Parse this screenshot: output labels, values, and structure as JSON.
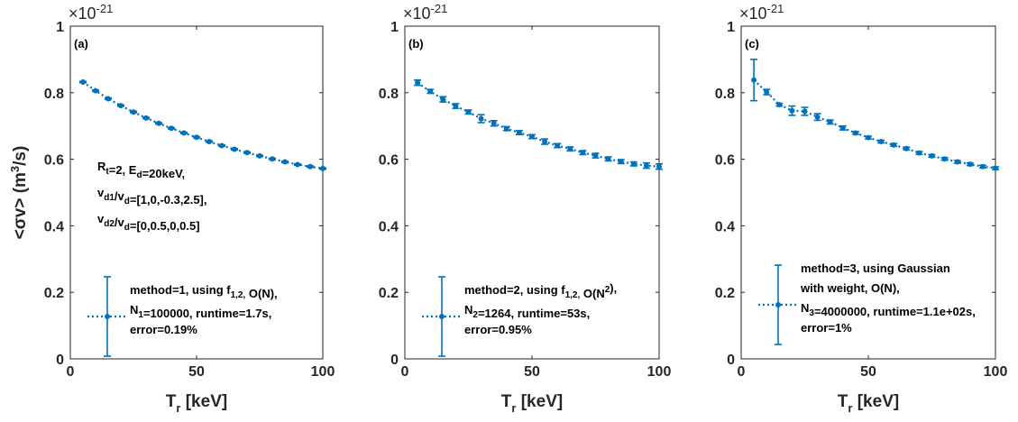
{
  "chart_data": [
    {
      "type": "scatter",
      "panel_label": "(a)",
      "xlim": [
        0,
        100
      ],
      "ylim": [
        0,
        1
      ],
      "xticks": [
        "0",
        "50",
        "100"
      ],
      "yticks": [
        "0",
        "0.2",
        "0.4",
        "0.6",
        "0.8",
        "1"
      ],
      "exponent": "-21",
      "xlabel": {
        "main": "T",
        "sub": "r",
        "unit": " [keV]"
      },
      "ylabel": "<σv> (m³/s)",
      "annotation": [
        "R_t=2, E_d=20keV,",
        "v_d1/v_d=[1,0,-0.3,2.5],",
        "v_d2/v_d=[0,0.5,0,0.5]"
      ],
      "legend": [
        "method=1, using f_1,2, O(N),",
        "N_1=100000, runtime=1.7s,",
        "error=0.19%"
      ],
      "series": [
        {
          "x": [
            5,
            10,
            15,
            20,
            25,
            30,
            35,
            40,
            45,
            50,
            55,
            60,
            65,
            70,
            75,
            80,
            85,
            90,
            95,
            100
          ],
          "y": [
            0.832,
            0.806,
            0.782,
            0.761,
            0.742,
            0.724,
            0.708,
            0.693,
            0.679,
            0.666,
            0.653,
            0.641,
            0.63,
            0.62,
            0.61,
            0.601,
            0.592,
            0.584,
            0.578,
            0.572
          ],
          "err": [
            0.002,
            0.002,
            0.002,
            0.002,
            0.002,
            0.002,
            0.002,
            0.002,
            0.002,
            0.002,
            0.002,
            0.002,
            0.002,
            0.002,
            0.002,
            0.002,
            0.002,
            0.002,
            0.002,
            0.002
          ]
        }
      ],
      "color": "#0072BD"
    },
    {
      "type": "scatter",
      "panel_label": "(b)",
      "xlim": [
        0,
        100
      ],
      "ylim": [
        0,
        1
      ],
      "xticks": [
        "0",
        "50",
        "100"
      ],
      "yticks": [
        "0",
        "0.2",
        "0.4",
        "0.6",
        "0.8",
        "1"
      ],
      "exponent": "-21",
      "xlabel": {
        "main": "T",
        "sub": "r",
        "unit": " [keV]"
      },
      "ylabel": "",
      "annotation": [],
      "legend": [
        "method=2, using f_1,2, O(N^2),",
        "N_2=1264, runtime=53s,",
        "error=0.95%"
      ],
      "series": [
        {
          "x": [
            5,
            10,
            15,
            20,
            25,
            30,
            35,
            40,
            45,
            50,
            55,
            60,
            65,
            70,
            75,
            80,
            85,
            90,
            95,
            100
          ],
          "y": [
            0.83,
            0.804,
            0.78,
            0.76,
            0.742,
            0.722,
            0.708,
            0.692,
            0.68,
            0.668,
            0.653,
            0.641,
            0.631,
            0.62,
            0.611,
            0.601,
            0.593,
            0.586,
            0.581,
            0.578
          ],
          "err": [
            0.008,
            0.006,
            0.008,
            0.007,
            0.006,
            0.012,
            0.008,
            0.006,
            0.006,
            0.006,
            0.008,
            0.006,
            0.006,
            0.006,
            0.007,
            0.006,
            0.006,
            0.006,
            0.008,
            0.008
          ]
        }
      ],
      "color": "#0072BD"
    },
    {
      "type": "scatter",
      "panel_label": "(c)",
      "xlim": [
        0,
        100
      ],
      "ylim": [
        0,
        1
      ],
      "xticks": [
        "0",
        "50",
        "100"
      ],
      "yticks": [
        "0",
        "0.2",
        "0.4",
        "0.6",
        "0.8",
        "1"
      ],
      "exponent": "-21",
      "xlabel": {
        "main": "T",
        "sub": "r",
        "unit": " [keV]"
      },
      "ylabel": "",
      "annotation": [],
      "legend": [
        "method=3, using Gaussian",
        "with weight, O(N),",
        "N_3=4000000, runtime=1.1e+02s,",
        "error=1%"
      ],
      "series": [
        {
          "x": [
            5,
            10,
            15,
            20,
            25,
            30,
            35,
            40,
            45,
            50,
            55,
            60,
            65,
            70,
            75,
            80,
            85,
            90,
            95,
            100
          ],
          "y": [
            0.838,
            0.802,
            0.764,
            0.746,
            0.744,
            0.727,
            0.712,
            0.694,
            0.679,
            0.665,
            0.653,
            0.643,
            0.632,
            0.619,
            0.61,
            0.601,
            0.592,
            0.585,
            0.578,
            0.573
          ],
          "err": [
            0.062,
            0.008,
            0.004,
            0.014,
            0.012,
            0.01,
            0.006,
            0.006,
            0.004,
            0.004,
            0.004,
            0.004,
            0.004,
            0.004,
            0.004,
            0.004,
            0.004,
            0.004,
            0.004,
            0.004
          ]
        }
      ],
      "color": "#0072BD"
    }
  ]
}
